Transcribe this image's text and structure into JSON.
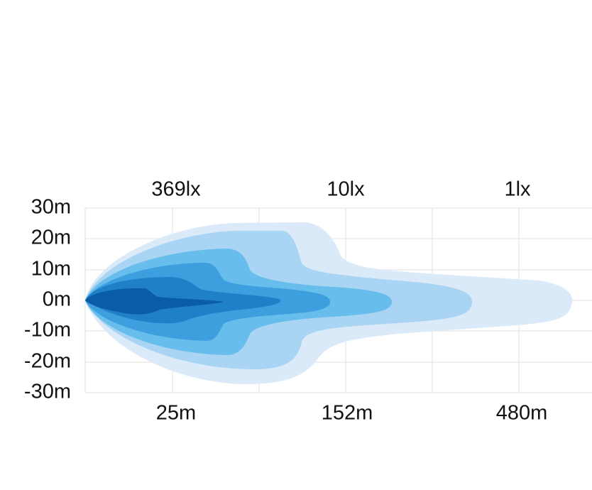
{
  "y_axis": {
    "labels": [
      "30m",
      "20m",
      "10m",
      "0m",
      "-10m",
      "-20m",
      "-30m"
    ]
  },
  "top_labels": [
    "369lx",
    "10lx",
    "1lx"
  ],
  "bottom_labels": [
    "25m",
    "152m",
    "480m"
  ]
}
